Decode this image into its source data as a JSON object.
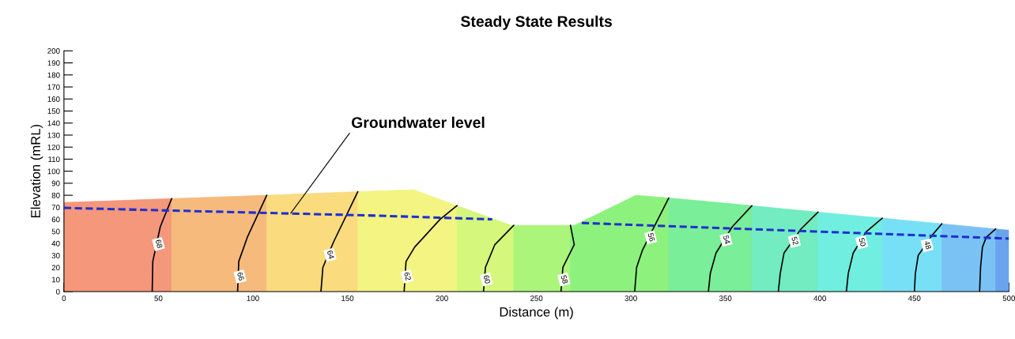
{
  "chart_data": {
    "type": "line",
    "title": "Steady State Results",
    "xlabel": "Distance (m)",
    "ylabel": "Elevation (mRL)",
    "xlim": [
      0,
      500
    ],
    "xticks": [
      0,
      50,
      100,
      150,
      200,
      250,
      300,
      350,
      400,
      450,
      500
    ],
    "ylim": [
      0,
      200
    ],
    "yticks": [
      0,
      10,
      20,
      30,
      40,
      50,
      60,
      70,
      80,
      90,
      100,
      110,
      120,
      130,
      140,
      150,
      160,
      170,
      180,
      190,
      200
    ],
    "grid": false,
    "legend": false,
    "series": [
      {
        "type": "area",
        "color": "#f4977b",
        "x": [
          0,
          57
        ],
        "values": [
          74,
          77.2
        ]
      },
      {
        "type": "area",
        "color": "#f7ba7d",
        "x": [
          57,
          107.3
        ],
        "values": [
          77.2,
          80
        ]
      },
      {
        "type": "area",
        "color": "#fadb7e",
        "x": [
          107.3,
          155.5
        ],
        "values": [
          80,
          83
        ]
      },
      {
        "type": "area",
        "color": "#f3f482",
        "x": [
          155.5,
          185,
          208
        ],
        "values": [
          83,
          84.6,
          71.4
        ]
      },
      {
        "type": "area",
        "color": "#d4f77c",
        "x": [
          208,
          236.6,
          238
        ],
        "values": [
          71.4,
          55,
          55
        ]
      },
      {
        "type": "area",
        "color": "#aaf57a",
        "x": [
          238,
          268
        ],
        "values": [
          55,
          55
        ]
      },
      {
        "type": "area",
        "color": "#8cf27d",
        "x": [
          268,
          270,
          302.7,
          320
        ],
        "values": [
          55,
          55,
          80,
          77.7
        ]
      },
      {
        "type": "area",
        "color": "#7aee98",
        "x": [
          320,
          325.7,
          364
        ],
        "values": [
          77.7,
          77,
          71.3
        ]
      },
      {
        "type": "area",
        "color": "#72ecc0",
        "x": [
          364,
          399
        ],
        "values": [
          71.3,
          66
        ]
      },
      {
        "type": "area",
        "color": "#70eedf",
        "x": [
          399,
          433
        ],
        "values": [
          66,
          61
        ]
      },
      {
        "type": "area",
        "color": "#78e0f6",
        "x": [
          433,
          464.5
        ],
        "values": [
          61,
          56.3
        ]
      },
      {
        "type": "area",
        "color": "#7ac2f4",
        "x": [
          464.5,
          493
        ],
        "values": [
          56.3,
          52
        ]
      },
      {
        "type": "area",
        "color": "#6aa4ee",
        "x": [
          493,
          500
        ],
        "values": [
          52,
          51
        ]
      },
      {
        "name": "68",
        "color": "#000000",
        "x": [
          46.7,
          47,
          51,
          57
        ],
        "values": [
          0,
          25,
          54,
          77.2
        ]
      },
      {
        "name": "66",
        "color": "#000000",
        "x": [
          91.9,
          92.5,
          97,
          107.3
        ],
        "values": [
          0,
          25,
          45,
          80
        ]
      },
      {
        "name": "64",
        "color": "#000000",
        "x": [
          136,
          137,
          142.6,
          155.5
        ],
        "values": [
          0,
          20,
          41,
          83
        ]
      },
      {
        "name": "62",
        "color": "#000000",
        "x": [
          180,
          181,
          185.6,
          199,
          208
        ],
        "values": [
          0,
          25,
          37,
          60,
          71.4
        ]
      },
      {
        "name": "60",
        "color": "#000000",
        "x": [
          222,
          223,
          228,
          238
        ],
        "values": [
          0,
          20,
          39,
          55
        ]
      },
      {
        "name": "58",
        "color": "#000000",
        "x": [
          263,
          264,
          270,
          268
        ],
        "values": [
          0,
          20,
          39,
          55
        ]
      },
      {
        "name": "56",
        "color": "#000000",
        "x": [
          302,
          303,
          306,
          313,
          320
        ],
        "values": [
          0,
          20,
          34,
          56,
          77.7
        ]
      },
      {
        "name": "54",
        "color": "#000000",
        "x": [
          341,
          342,
          345,
          353.7,
          364
        ],
        "values": [
          0,
          15,
          32,
          54,
          71.3
        ]
      },
      {
        "name": "52",
        "color": "#000000",
        "x": [
          378,
          379,
          381,
          390,
          399
        ],
        "values": [
          0,
          15,
          32,
          52,
          66
        ]
      },
      {
        "name": "50",
        "color": "#000000",
        "x": [
          414,
          415,
          417.6,
          424.7,
          433
        ],
        "values": [
          0,
          15,
          32,
          50,
          61
        ]
      },
      {
        "name": "48",
        "color": "#000000",
        "x": [
          450,
          450.5,
          452,
          459.5,
          464.5
        ],
        "values": [
          0,
          15,
          30,
          47,
          56.3
        ]
      },
      {
        "color": "#000000",
        "x": [
          484.5,
          485,
          486,
          488,
          493
        ],
        "values": [
          0,
          20,
          37,
          45,
          52
        ]
      },
      {
        "line_style": "dashed",
        "color": "#1f2fd0",
        "x": [
          0,
          167,
          226.6,
          250,
          274,
          325.7,
          500
        ],
        "values": [
          69.5,
          63,
          60,
          null,
          57,
          54,
          44
        ]
      }
    ],
    "annotations": [
      {
        "text": "Groundwater level",
        "x": 120,
        "y": 65
      }
    ]
  }
}
